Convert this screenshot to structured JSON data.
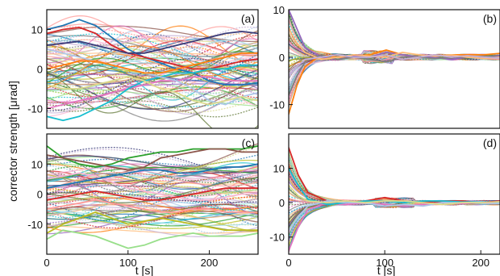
{
  "ylabel_shared": "corrector strength [μrad]",
  "colors": [
    "#1f77b4",
    "#ff7f0e",
    "#2ca02c",
    "#d62728",
    "#9467bd",
    "#8c564b",
    "#e377c2",
    "#7f7f7f",
    "#bcbd22",
    "#17becf",
    "#ffbb78",
    "#98df8a",
    "#aec7e8",
    "#c5b0d5",
    "#f7b6d2",
    "#dbdb8d",
    "#9edae5",
    "#ff9896",
    "#393b79",
    "#637939"
  ],
  "chart_data": [
    {
      "panel": "(a)",
      "type": "line",
      "xlabel": "",
      "ylabel": "",
      "xlim": [
        0,
        260
      ],
      "ylim": [
        -15,
        15
      ],
      "xticks": [],
      "yticks": [
        10,
        0,
        -10
      ],
      "grid": false,
      "series_count": 80,
      "t": [
        0,
        20,
        40,
        60,
        80,
        100,
        120,
        140,
        160,
        180,
        200,
        220,
        240,
        260
      ],
      "behavior": "wide spread persisting over full time range",
      "series": [
        {
          "values": [
            10,
            11,
            12.5,
            11,
            8,
            5,
            3,
            1.5,
            0,
            -1,
            -3,
            -4,
            -4,
            -3.5
          ]
        },
        {
          "values": [
            9,
            10,
            10.5,
            9,
            6,
            4,
            3,
            2,
            1,
            0,
            0,
            1,
            2,
            2.5
          ]
        },
        {
          "values": [
            -10,
            -9,
            -8,
            -7,
            -6,
            -5,
            -4,
            -3,
            -3,
            -2,
            -2,
            -3,
            -3,
            -3
          ]
        },
        {
          "values": [
            -12,
            -13,
            -12,
            -10,
            -8,
            -5,
            -3,
            -2,
            -1,
            -1,
            0,
            0,
            1,
            1
          ]
        },
        {
          "values": [
            5,
            4,
            3,
            2,
            1,
            0,
            -1,
            -2,
            -3,
            -5,
            -8,
            -9,
            -7,
            -6
          ]
        },
        {
          "values": [
            -4,
            -5,
            -5,
            -4,
            -3,
            -2,
            -3,
            -5,
            -6,
            -8,
            -9,
            -8,
            -7,
            -8
          ]
        },
        {
          "values": [
            6,
            6.5,
            7,
            6,
            5,
            4,
            4,
            5,
            6,
            7,
            8,
            9,
            9.5,
            9
          ]
        },
        {
          "values": [
            0,
            1,
            2,
            2,
            1,
            0,
            -1,
            -1,
            0,
            1,
            2,
            3,
            4,
            4
          ]
        }
      ]
    },
    {
      "panel": "(b)",
      "type": "line",
      "xlabel": "",
      "ylabel": "",
      "xlim": [
        0,
        260
      ],
      "ylim": [
        -15,
        10
      ],
      "xticks": [],
      "yticks": [
        10,
        0,
        -10
      ],
      "grid": false,
      "series_count": 80,
      "t": [
        0,
        10,
        20,
        40,
        60,
        80,
        100,
        120,
        140,
        160,
        180,
        200,
        220,
        240,
        260
      ],
      "behavior": "large initial spread converging to near zero after about 40 s",
      "series": [
        {
          "values": [
            -12,
            -6,
            -2,
            0.5,
            0,
            0.3,
            0.5,
            1.5,
            0.5,
            0,
            0.3,
            0.5,
            0.5,
            0.5,
            0.8
          ]
        },
        {
          "values": [
            10,
            6,
            2,
            0,
            -0.5,
            0.2,
            0,
            1,
            0.5,
            0,
            0,
            -0.5,
            0,
            0,
            0.3
          ]
        },
        {
          "values": [
            -8,
            -4,
            -1,
            0.5,
            -0.5,
            0,
            -0.5,
            -1,
            0,
            0,
            -0.3,
            0,
            0,
            0.2,
            0
          ]
        },
        {
          "values": [
            6,
            3,
            1,
            -0.5,
            0,
            0.5,
            0.2,
            0,
            1,
            0.5,
            0.2,
            0.5,
            0,
            -0.3,
            0
          ]
        },
        {
          "values": [
            -4,
            -2,
            -0.5,
            0,
            0.5,
            0,
            0,
            0.5,
            -0.5,
            0,
            0.5,
            0,
            0.3,
            0,
            -0.2
          ]
        }
      ]
    },
    {
      "panel": "(c)",
      "type": "line",
      "xlabel": "t [s]",
      "ylabel": "",
      "xlim": [
        0,
        260
      ],
      "ylim": [
        -20,
        20
      ],
      "xticks": [
        0,
        100,
        200
      ],
      "yticks": [
        10,
        0,
        -10
      ],
      "grid": false,
      "series_count": 80,
      "t": [
        0,
        20,
        40,
        60,
        80,
        100,
        120,
        140,
        160,
        180,
        200,
        220,
        240,
        260
      ],
      "behavior": "wide spread persisting over full time range",
      "series": [
        {
          "values": [
            16,
            12,
            10,
            9,
            10,
            12,
            13,
            14,
            14,
            15,
            15,
            15,
            15,
            16
          ]
        },
        {
          "values": [
            13,
            12,
            11,
            10,
            9,
            8,
            9,
            12,
            13,
            14,
            15,
            15,
            14,
            14
          ]
        },
        {
          "values": [
            -13,
            -10,
            -8,
            -6,
            -8,
            -10,
            -9,
            -8,
            -9,
            -10,
            -11,
            -12,
            -12,
            -12
          ]
        },
        {
          "values": [
            -15,
            -12,
            -13,
            -14,
            -16,
            -18,
            -17,
            -15,
            -14,
            -13,
            -14,
            -14,
            -14,
            -13
          ]
        },
        {
          "values": [
            5,
            6,
            7,
            6,
            4,
            2,
            1,
            0,
            -1,
            -2,
            -2,
            -1,
            0,
            0
          ]
        },
        {
          "values": [
            -5,
            -4,
            -3,
            -2,
            -3,
            -4,
            -5,
            -6,
            -6,
            -5,
            -5,
            -6,
            -6,
            -6
          ]
        },
        {
          "values": [
            2,
            3,
            4,
            5,
            6,
            7,
            8,
            8,
            7,
            7,
            8,
            9,
            9,
            10
          ]
        },
        {
          "values": [
            -2,
            -1,
            0,
            1,
            0,
            -1,
            -2,
            -2,
            -1,
            0,
            1,
            2,
            2,
            2
          ]
        }
      ]
    },
    {
      "panel": "(d)",
      "type": "line",
      "xlabel": "t [s]",
      "ylabel": "",
      "xlim": [
        0,
        220
      ],
      "ylim": [
        -15,
        20
      ],
      "xticks": [
        0,
        100,
        200
      ],
      "yticks": [
        10,
        0,
        -10
      ],
      "grid": false,
      "series_count": 80,
      "t": [
        0,
        10,
        20,
        40,
        60,
        80,
        100,
        120,
        140,
        160,
        180,
        200,
        220
      ],
      "behavior": "large initial spread converging to near zero after about 40 s",
      "series": [
        {
          "values": [
            16,
            8,
            3,
            0.5,
            0,
            0.5,
            1.5,
            0.5,
            0,
            0.5,
            0.5,
            0,
            0.5
          ]
        },
        {
          "values": [
            -14,
            -7,
            -2,
            0,
            -0.5,
            0,
            -0.5,
            -1,
            -0.5,
            0,
            -0.3,
            0,
            0
          ]
        },
        {
          "values": [
            10,
            5,
            1,
            -0.5,
            0,
            0.5,
            0.5,
            0,
            0.5,
            0.5,
            0.2,
            0.3,
            0
          ]
        },
        {
          "values": [
            -8,
            -4,
            -1,
            0.5,
            0,
            0,
            -1,
            -0.5,
            -1,
            0,
            0,
            0.2,
            0
          ]
        },
        {
          "values": [
            5,
            2,
            0.5,
            0,
            0.5,
            0,
            0.5,
            0.5,
            0,
            -0.5,
            0,
            0,
            0.3
          ]
        }
      ]
    }
  ]
}
